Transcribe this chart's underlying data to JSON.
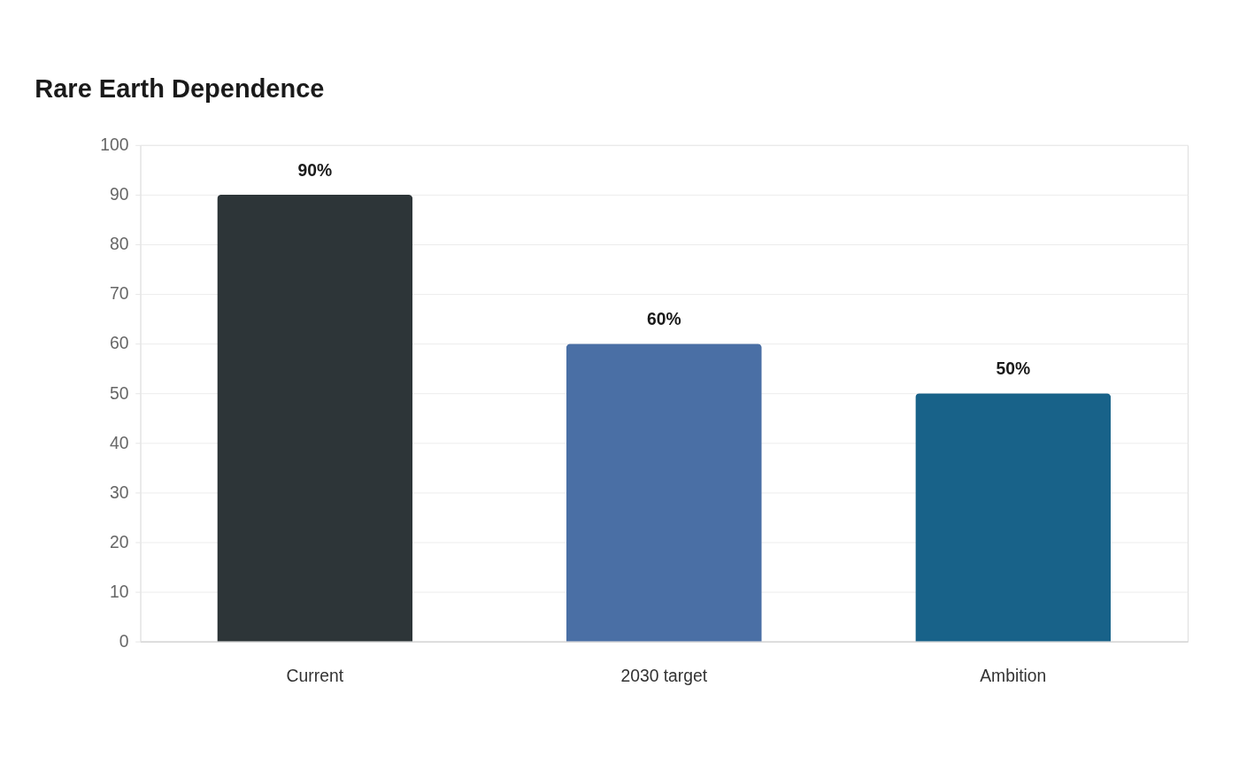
{
  "chart_data": {
    "type": "bar",
    "title": "Rare Earth Dependence",
    "categories": [
      "Current",
      "2030 target",
      "Ambition"
    ],
    "values": [
      90,
      60,
      50
    ],
    "colors": [
      "#2d3538",
      "#4a6fa5",
      "#186289"
    ],
    "value_labels": [
      "90%",
      "60%",
      "50%"
    ],
    "ylim": [
      0,
      100
    ],
    "yticks": [
      0,
      10,
      20,
      30,
      40,
      50,
      60,
      70,
      80,
      90,
      100
    ],
    "grid": "y",
    "legend": false
  }
}
